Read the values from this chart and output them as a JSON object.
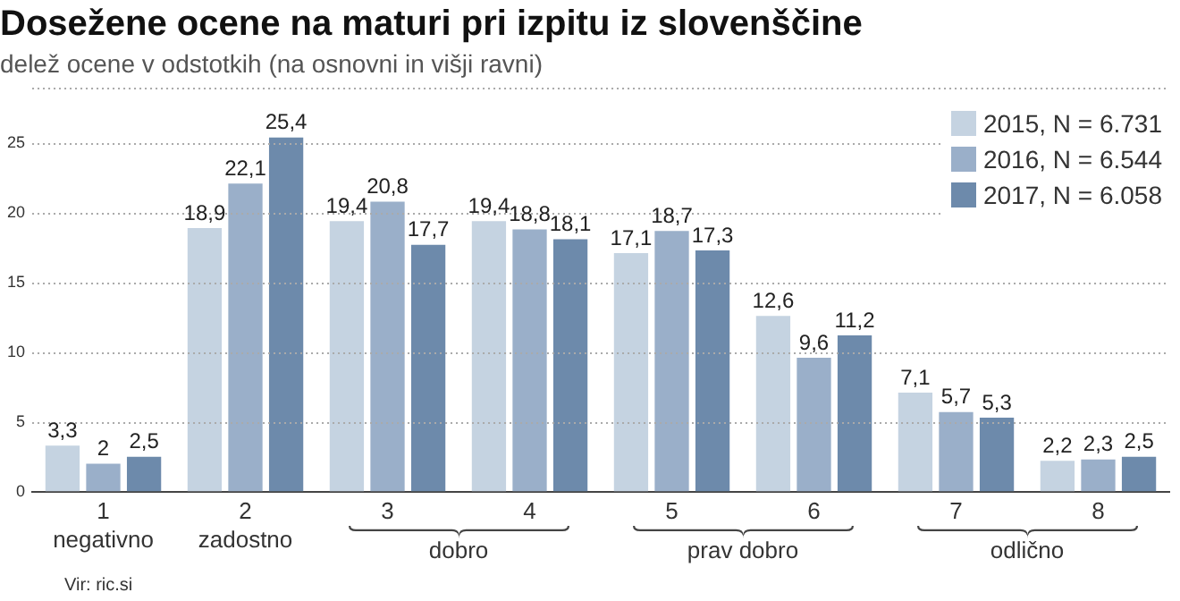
{
  "chart_data": {
    "type": "bar",
    "title": "Dosežene ocene na maturi pri izpitu iz slovenščine",
    "subtitle": "delež ocene v odstotkih (na osnovni in višji ravni)",
    "categories": [
      "1\nnegativno",
      "2\nzadostno",
      "3",
      "4",
      "5",
      "6",
      "7",
      "8"
    ],
    "series": [
      {
        "name": "2015, N = 6.731",
        "color": "#c5d3e1",
        "values": [
          3.3,
          18.9,
          19.4,
          19.4,
          17.1,
          12.6,
          7.1,
          2.2
        ],
        "value_labels": [
          "3,3",
          "18,9",
          "19,4",
          "19,4",
          "17,1",
          "12,6",
          "7,1",
          "2,2"
        ]
      },
      {
        "name": "2016, N = 6.544",
        "color": "#9aafc9",
        "values": [
          2,
          22.1,
          20.8,
          18.8,
          18.7,
          9.6,
          5.7,
          2.3
        ],
        "value_labels": [
          "2",
          "22,1",
          "20,8",
          "18,8",
          "18,7",
          "9,6",
          "5,7",
          "2,3"
        ]
      },
      {
        "name": "2017, N = 6.058",
        "color": "#6d8aab",
        "values": [
          2.5,
          25.4,
          17.7,
          18.1,
          17.3,
          11.2,
          5.3,
          2.5
        ],
        "value_labels": [
          "2,5",
          "25,4",
          "17,7",
          "18,1",
          "17,3",
          "11,2",
          "5,3",
          "2,5"
        ]
      }
    ],
    "ylim": [
      0,
      29
    ],
    "yticks": [
      0,
      5,
      10,
      15,
      20,
      25,
      {
        "value": 29,
        "label": null
      }
    ],
    "grid": "y",
    "legend": "top right",
    "annotations": [
      "dobro",
      "prav dobro",
      "odlično",
      "Vir: ric.si"
    ]
  }
}
